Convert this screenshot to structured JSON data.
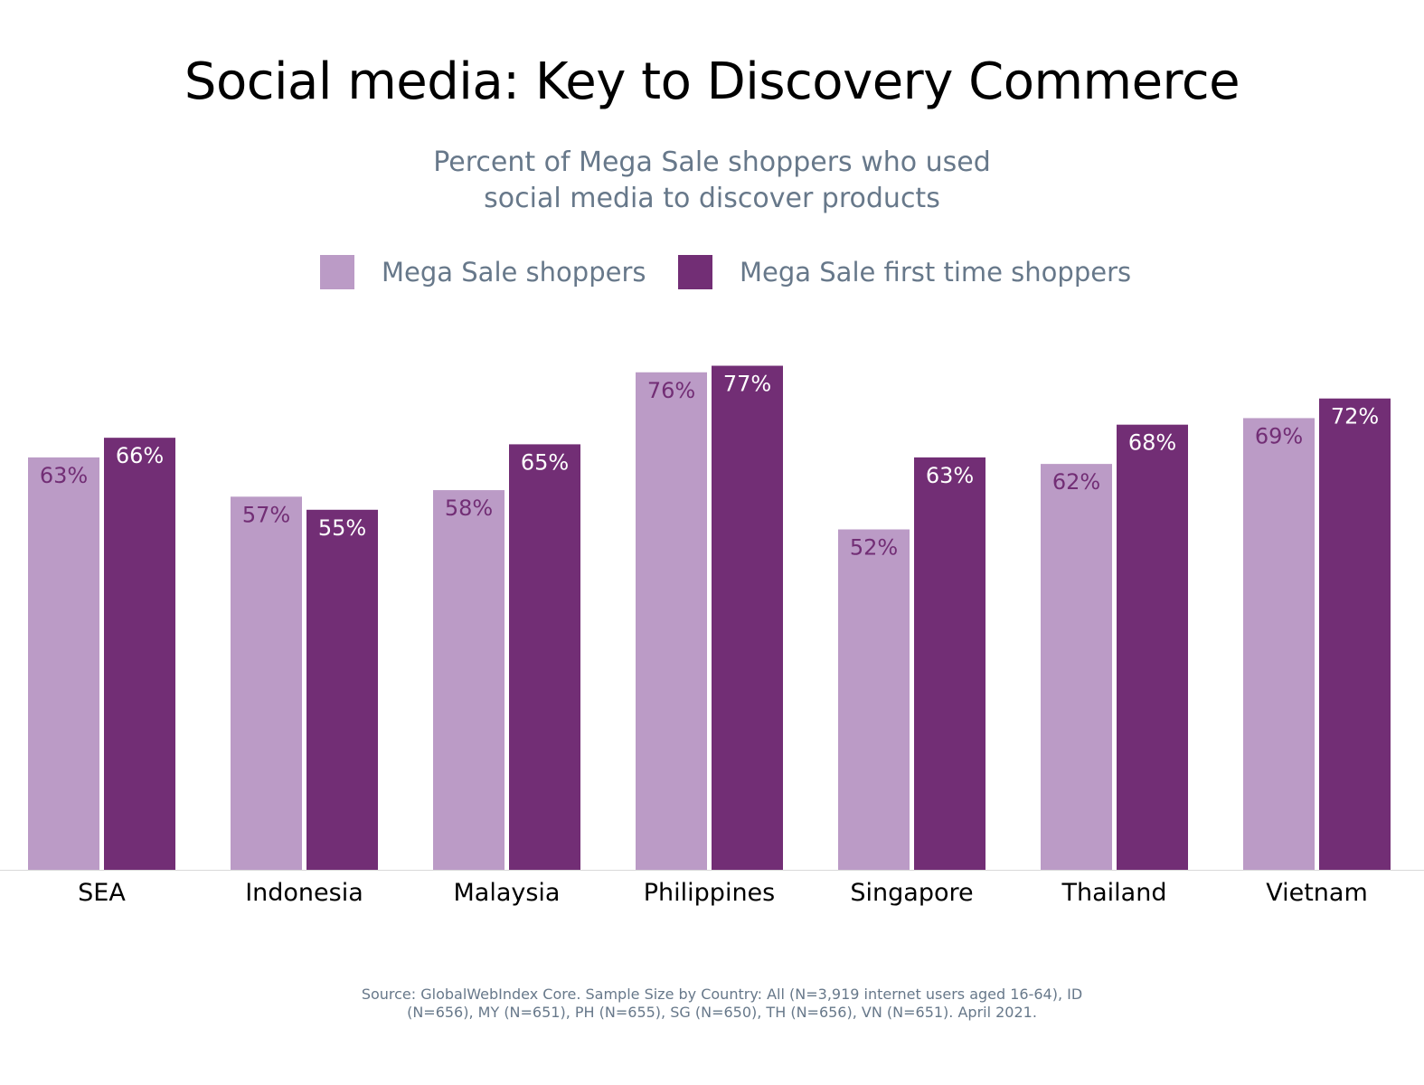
{
  "colors": {
    "series_light": "#bb9bc6",
    "series_dark": "#722e75",
    "title_text": "#000000",
    "muted_text": "#67788a",
    "axis_line": "#d9d9d9",
    "label_on_light": "#722e75",
    "label_on_dark": "#ffffff"
  },
  "chart_data": {
    "type": "bar",
    "title": "Social media: Key to Discovery Commerce",
    "subtitle": [
      "Percent of Mega Sale shoppers who used",
      "social media to discover products"
    ],
    "categories": [
      "SEA",
      "Indonesia",
      "Malaysia",
      "Philippines",
      "Singapore",
      "Thailand",
      "Vietnam"
    ],
    "series": [
      {
        "name": "Mega Sale shoppers",
        "values": [
          63,
          57,
          58,
          76,
          52,
          62,
          69
        ],
        "labels": [
          "63%",
          "57%",
          "58%",
          "76%",
          "52%",
          "62%",
          "69%"
        ],
        "color": "#bb9bc6"
      },
      {
        "name": "Mega Sale first time shoppers",
        "values": [
          66,
          55,
          65,
          77,
          63,
          68,
          72
        ],
        "labels": [
          "66%",
          "55%",
          "65%",
          "77%",
          "63%",
          "68%",
          "72%"
        ],
        "color": "#722e75"
      }
    ],
    "unit": "%",
    "ylim": [
      0,
      100
    ],
    "grid": false,
    "legend_position": "top-center",
    "source": [
      "Source: GlobalWebIndex Core. Sample Size by Country: All (N=3,919 internet users aged 16-64), ID",
      "(N=656), MY (N=651), PH (N=655), SG (N=650), TH (N=656), VN (N=651). April 2021."
    ]
  }
}
